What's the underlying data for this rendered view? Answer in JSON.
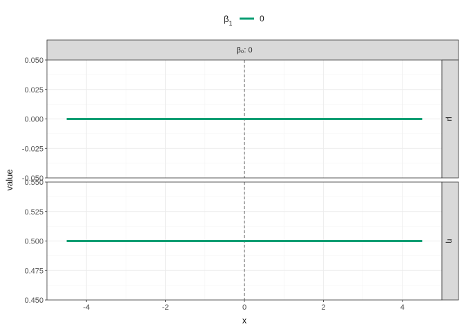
{
  "chart_data": {
    "type": "line",
    "xlabel": "x",
    "ylabel": "value",
    "xlim": [
      -5,
      5
    ],
    "x_ticks": [
      -4,
      -2,
      0,
      2,
      4
    ],
    "x_tick_labels": [
      "-4",
      "-2",
      "0",
      "2",
      "4"
    ],
    "grid": true,
    "vline_x": 0,
    "column_strip": "β₀: 0",
    "legend": {
      "position": "top",
      "title": "β",
      "title_subscript": "1",
      "entries": [
        {
          "label": "0",
          "color": "#009E73"
        }
      ]
    },
    "panels": [
      {
        "strip": "μ",
        "ylim": [
          -0.05,
          0.05
        ],
        "y_ticks": [
          0.05,
          0.025,
          0.0,
          -0.025,
          -0.05
        ],
        "y_tick_labels": [
          "0.050",
          "0.025",
          "0.000",
          "-0.025",
          "-0.050"
        ],
        "series": [
          {
            "name": "0",
            "color": "#009E73",
            "x": [
              -4.5,
              4.5
            ],
            "y": [
              0.0,
              0.0
            ]
          }
        ]
      },
      {
        "strip": "η",
        "ylim": [
          0.45,
          0.55
        ],
        "y_ticks": [
          0.55,
          0.525,
          0.5,
          0.475,
          0.45
        ],
        "y_tick_labels": [
          "0.550",
          "0.525",
          "0.500",
          "0.475",
          "0.450"
        ],
        "series": [
          {
            "name": "0",
            "color": "#009E73",
            "x": [
              -4.5,
              4.5
            ],
            "y": [
              0.5,
              0.5
            ]
          }
        ]
      }
    ]
  }
}
